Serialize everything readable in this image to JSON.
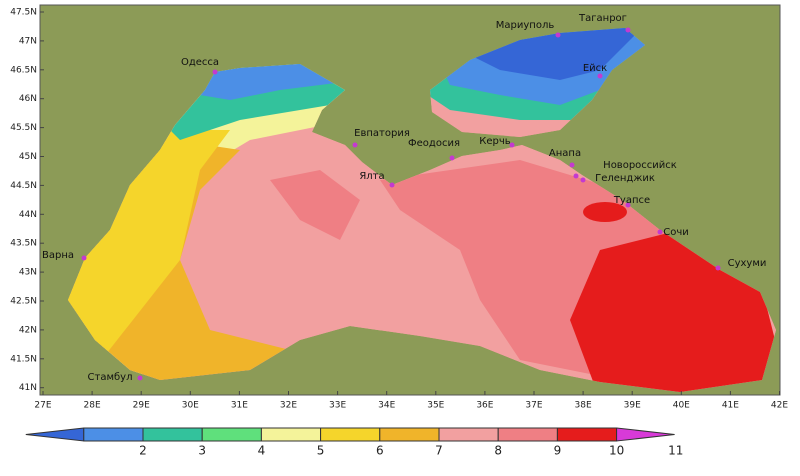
{
  "map": {
    "lat_labels": [
      "47.5N",
      "47N",
      "46.5N",
      "46N",
      "45.5N",
      "45N",
      "44.5N",
      "44N",
      "43.5N",
      "43N",
      "42.5N",
      "42N",
      "41.5N",
      "41N"
    ],
    "lon_labels": [
      "27E",
      "28E",
      "29E",
      "30E",
      "31E",
      "32E",
      "33E",
      "34E",
      "35E",
      "36E",
      "37E",
      "38E",
      "39E",
      "40E",
      "41E",
      "42E"
    ],
    "cities": [
      "Одесса",
      "Мариуполь",
      "Таганрог",
      "Ейск",
      "Евпатория",
      "Феодосия",
      "Керчь",
      "Ялта",
      "Анапа",
      "Новороссийск",
      "Геленджик",
      "Туапсе",
      "Сочи",
      "Сухуми",
      "Варна",
      "Стамбул"
    ]
  },
  "colorbar": {
    "labels": [
      "2",
      "3",
      "4",
      "5",
      "6",
      "7",
      "8",
      "9",
      "10",
      "11"
    ],
    "colors": [
      "#3566d6",
      "#4c8fe6",
      "#33c29c",
      "#5fe07c",
      "#f4f39a",
      "#f5d52b",
      "#f0b42a",
      "#f2a0a0",
      "#ef7f84",
      "#e51c1c",
      "#d83ad8"
    ]
  }
}
